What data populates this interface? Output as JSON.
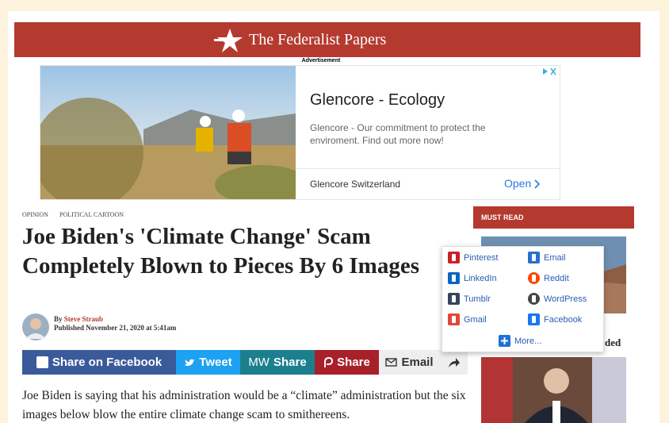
{
  "header": {
    "site_name": "The Federalist Papers"
  },
  "ad": {
    "label": "Advertisement",
    "title": "Glencore - Ecology",
    "description": "Glencore - Our commitment to protect the enviroment. Find out more now!",
    "advertiser": "Glencore Switzerland",
    "cta": "Open"
  },
  "article": {
    "categories": [
      "OPINION",
      "POLITICAL CARTOON"
    ],
    "title": "Joe Biden's 'Climate Change' Scam Completely Blown to Pieces By 6 Images",
    "byline_prefix": "By",
    "author": "Steve Straub",
    "published": "Published November 21, 2020 at 5:41am",
    "body": "Joe Biden is saying that his administration would be a “climate” administration but the six images below blow the entire climate change scam to smithereens."
  },
  "share_bar": [
    {
      "label": "Share on Facebook"
    },
    {
      "label": "Tweet"
    },
    {
      "icon": "MW",
      "label": "Share"
    },
    {
      "label": "Share"
    },
    {
      "label": "Email"
    }
  ],
  "sidebar": {
    "heading": "MUST READ",
    "fragment": "ded"
  },
  "share_menu": {
    "items": [
      "Pinterest",
      "Email",
      "LinkedIn",
      "Reddit",
      "Tumblr",
      "WordPress",
      "Gmail",
      "Facebook"
    ],
    "more": "More..."
  }
}
